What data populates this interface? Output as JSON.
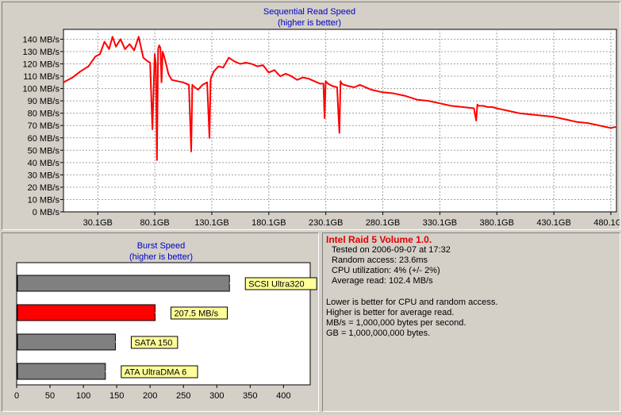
{
  "chart_data": [
    {
      "type": "line",
      "title": "Sequential Read Speed",
      "subtitle": "(higher is better)",
      "xlabel": "",
      "ylabel": "",
      "x_ticks": [
        "30.1GB",
        "80.1GB",
        "130.1GB",
        "180.1GB",
        "230.1GB",
        "280.1GB",
        "330.1GB",
        "380.1GB",
        "430.1GB",
        "480.1GB"
      ],
      "y_ticks": [
        "0 MB/s",
        "10 MB/s",
        "20 MB/s",
        "30 MB/s",
        "40 MB/s",
        "50 MB/s",
        "60 MB/s",
        "70 MB/s",
        "80 MB/s",
        "90 MB/s",
        "100 MB/s",
        "110 MB/s",
        "120 MB/s",
        "130 MB/s",
        "140 MB/s"
      ],
      "xlim": [
        0,
        485
      ],
      "ylim": [
        0,
        148
      ],
      "grid": true,
      "series": [
        {
          "color": "#ff0000",
          "x": [
            0,
            8,
            15,
            22,
            28,
            32,
            36,
            40,
            43,
            46,
            50,
            54,
            58,
            62,
            66,
            70,
            74,
            76,
            78,
            80,
            81,
            82,
            83,
            84,
            85,
            86,
            87,
            88,
            90,
            92,
            95,
            100,
            105,
            110,
            112,
            113,
            114,
            118,
            122,
            126,
            128,
            129,
            130,
            132,
            136,
            140,
            145,
            150,
            155,
            160,
            165,
            170,
            175,
            180,
            185,
            190,
            195,
            200,
            205,
            210,
            215,
            220,
            225,
            228,
            229,
            230,
            232,
            236,
            240,
            242,
            243,
            244,
            246,
            250,
            255,
            260,
            270,
            280,
            290,
            300,
            310,
            320,
            330,
            340,
            350,
            360,
            362,
            363,
            364,
            368,
            372,
            376,
            380,
            390,
            400,
            410,
            420,
            430,
            440,
            450,
            460,
            470,
            480,
            485
          ],
          "y": [
            105,
            109,
            114,
            118,
            126,
            128,
            138,
            132,
            142,
            134,
            140,
            132,
            136,
            131,
            142,
            125,
            122,
            121,
            67,
            128,
            120,
            42,
            132,
            135,
            133,
            105,
            130,
            127,
            120,
            112,
            107,
            106,
            105,
            103,
            49,
            103,
            102,
            99,
            103,
            105,
            60,
            107,
            110,
            114,
            118,
            117,
            125,
            122,
            120,
            121,
            120,
            118,
            119,
            113,
            115,
            110,
            112,
            110,
            107,
            109,
            108,
            106,
            104,
            104,
            76,
            106,
            104,
            102,
            101,
            64,
            106,
            104,
            103,
            102,
            101,
            103,
            99,
            97,
            96,
            94,
            91,
            90,
            88,
            86,
            85,
            84,
            74,
            87,
            86,
            86,
            85,
            85,
            84,
            82,
            80,
            79,
            78,
            77,
            75,
            73,
            72,
            70,
            68,
            69
          ]
        }
      ]
    },
    {
      "type": "bar",
      "orientation": "horizontal",
      "title": "Burst Speed",
      "subtitle": "(higher is better)",
      "xlabel": "",
      "ylabel": "",
      "x_ticks": [
        "0",
        "50",
        "100",
        "150",
        "200",
        "250",
        "300",
        "350",
        "400"
      ],
      "xlim": [
        0,
        440
      ],
      "grid": false,
      "bars": [
        {
          "label": "SCSI Ultra320",
          "value": 319,
          "color": "#808080"
        },
        {
          "label": "207.5 MB/s",
          "value": 207.5,
          "color": "#ff0000"
        },
        {
          "label": "SATA 150",
          "value": 148,
          "color": "#808080"
        },
        {
          "label": "ATA UltraDMA 6",
          "value": 133,
          "color": "#808080"
        }
      ],
      "label_box_color": "#ffff99"
    }
  ],
  "info": {
    "title": "Intel Raid 5 Volume 1.0.",
    "lines": [
      "Tested on 2006-09-07 at 17:32",
      "Random access: 23.6ms",
      "CPU utilization: 4% (+/- 2%)",
      "Average read: 102.4 MB/s"
    ],
    "notes": [
      "Lower is better for CPU and random access.",
      "Higher is better for average read.",
      "MB/s = 1,000,000 bytes per second.",
      "GB = 1,000,000,000 bytes."
    ]
  },
  "colors": {
    "background": "#d4d0c8",
    "title_text": "#0000c8",
    "series": "#ff0000",
    "highlight": "#e00000"
  }
}
